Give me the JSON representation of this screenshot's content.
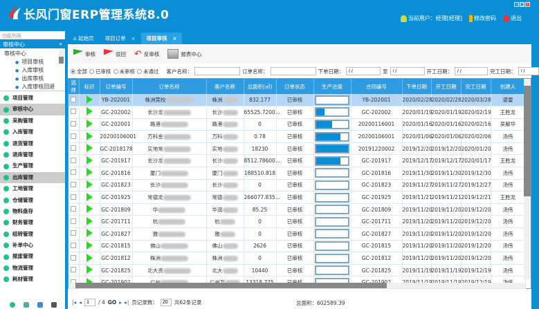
{
  "app": {
    "title": "长风门窗ERP管理系统8.0",
    "current_user": "当前用户：经理[经理]",
    "change_password": "修改密码",
    "logout": "退出"
  },
  "sidebar": {
    "header": "功能列表",
    "section": "审核中心",
    "tree_root": "审核中心",
    "tree_items": [
      "项目审核",
      "入库审核",
      "出库审核",
      "入库审核回退"
    ],
    "menu": [
      {
        "label": "项目管理"
      },
      {
        "label": "审核中心",
        "selected": true
      },
      {
        "label": "采购管理"
      },
      {
        "label": "入库管理"
      },
      {
        "label": "退货管理"
      },
      {
        "label": "退库管理"
      },
      {
        "label": "生产管理"
      },
      {
        "label": "出库管理",
        "selected": true
      },
      {
        "label": "工地管理"
      },
      {
        "label": "仓储管理"
      },
      {
        "label": "物料盘存"
      },
      {
        "label": "财务管理"
      },
      {
        "label": "结转管理"
      },
      {
        "label": "补单中心"
      },
      {
        "label": "报废管理"
      },
      {
        "label": "物流管理"
      },
      {
        "label": "耗材管理"
      }
    ]
  },
  "tabs": [
    {
      "label": "起始页"
    },
    {
      "label": "项目订单"
    },
    {
      "label": "项目审核",
      "active": true
    }
  ],
  "toolbar": {
    "approve": "审核",
    "reject": "驳回",
    "unapprove": "反审核",
    "report": "报表中心"
  },
  "filter": {
    "radios": [
      "全部",
      "已审核",
      "未审核",
      "未通过"
    ],
    "selected": "全部",
    "customer_label": "客户名称：",
    "order_label": "订单名称：",
    "order_date_label": "下单日期：",
    "to_label": "至",
    "start_date_label": "开工日期：",
    "finish_date_label": "完工日期：",
    "date_placeholder": "/ /"
  },
  "table": {
    "columns": [
      "选择",
      "标识",
      "订单编号",
      "订单名称",
      "客户名称",
      "总面积(㎡)",
      "订单状态",
      "生产进度",
      "合同编号",
      "下单日期",
      "开工日期",
      "完工日期",
      "创建人"
    ],
    "rows": [
      [
        "YB-202001",
        "株洲莞校",
        "株洲",
        "832.177",
        "已审核",
        0,
        "YB-202001",
        "2020/02/28",
        "2020/02/28",
        "2020/03/28",
        "谌雷"
      ],
      [
        "GC-202002",
        "长沙龙",
        "长沙",
        "65525.7200...",
        "已审核",
        25,
        "GC-202002",
        "2020/01/19",
        "2020/01/19",
        "2020/02/19",
        "王胜龙"
      ],
      [
        "GC-202001",
        "路港",
        "路港",
        "0",
        "已审核",
        50,
        "20200116001",
        "2020/01/16",
        "2020/01/16",
        "2020/02/16",
        "吴解华"
      ],
      [
        "20200106001",
        "万科金",
        "万科",
        "0.78",
        "已审核",
        75,
        "20200106001",
        "2020/01/06",
        "2020/01/06",
        "2020/02/06",
        "汤伟"
      ],
      [
        "GC-2018178",
        "实地常",
        "实地",
        "18230",
        "已审核",
        100,
        "20191220002",
        "2019/12/20",
        "2019/12/20",
        "2020/01/20",
        "汤伟"
      ],
      [
        "GC-201917",
        "长沙龙",
        "长沙",
        "8512.78600...",
        "已审核",
        75,
        "GC-201917",
        "2019/12/17",
        "2019/12/17",
        "2020/01/17",
        "王胜龙"
      ],
      [
        "GC-201816",
        "厦门",
        "厦门",
        "188510.818",
        "已审核",
        0,
        "GC-201816",
        "2019/11/30",
        "2019/11/30",
        "2019/12/30",
        "汤伟"
      ],
      [
        "GC-201823",
        "长沙",
        "长沙",
        "0",
        "已审核",
        0,
        "GC-201823",
        "2019/11/27",
        "2019/11/27",
        "2019/12/27",
        "汤伟"
      ],
      [
        "GC-201925",
        "常德龙",
        "常德",
        "266077.835...",
        "已审核",
        0,
        "GC-201925",
        "2019/11/21",
        "2019/11/21",
        "2019/12/21",
        "王胜龙"
      ],
      [
        "GC-201809",
        "华",
        "华润",
        "85.25",
        "已审核",
        0,
        "GC-201809",
        "2019/11/20",
        "2019/11/20",
        "2019/12/20",
        "汤伟"
      ],
      [
        "GC-201711",
        "杭",
        "杭",
        "0",
        "已审核",
        0,
        "GC-201711",
        "2019/11/20",
        "2019/11/20",
        "2019/12/20",
        "汤伟"
      ],
      [
        "GC-201827",
        "雅",
        "雅",
        "0",
        "已审核",
        0,
        "GC-201827",
        "2019/11/20",
        "2019/11/20",
        "2019/12/20",
        "汤伟"
      ],
      [
        "GC-201815",
        "佛山",
        "佛山",
        "2626",
        "已审核",
        0,
        "GC-201815",
        "2019/11/20",
        "2019/11/20",
        "2019/12/20",
        "汤伟"
      ],
      [
        "GC-201812",
        "株洲",
        "株洲",
        "0",
        "已审核",
        0,
        "GC-201812",
        "2019/11/20",
        "2019/11/20",
        "2019/12/20",
        "汤伟"
      ],
      [
        "GC-201825",
        "北大资",
        "北大",
        "10440",
        "已审核",
        0,
        "GC-201825",
        "2019/11/19",
        "2019/11/19",
        "2019/12/19",
        "汤伟"
      ],
      [
        "GC-201902",
        "广州",
        "广州万",
        "13318.775",
        "已审核",
        0,
        "GC-201902",
        "2019/11/19",
        "2019/11/19",
        "2019/12/19",
        "汤伟"
      ]
    ]
  },
  "pager": {
    "page": "1",
    "of": "/ 4",
    "go": "GO",
    "page_size_label": "页记录数：",
    "page_size": "20",
    "total_records": "共62条记录",
    "total_area": "总面积：602589.39"
  },
  "colors": {
    "brand": "#0a8fd6",
    "header_row": "#2f9be0",
    "selected_row": "#b4d7f7",
    "progress": "#0a8fd6",
    "status_flag": "#22dd22"
  }
}
